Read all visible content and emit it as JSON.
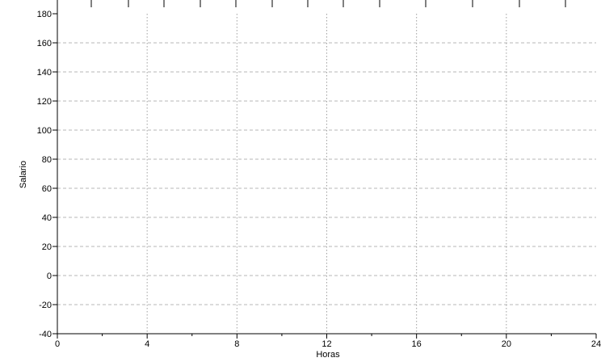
{
  "chart_data": {
    "type": "line",
    "title": "",
    "xlabel": "Horas",
    "ylabel": "Salario",
    "xlim": [
      0,
      24
    ],
    "ylim": [
      -40,
      180
    ],
    "x_major_ticks": [
      0,
      4,
      8,
      12,
      16,
      20,
      24
    ],
    "x_minor_step": 2,
    "y_major_ticks": [
      -40,
      -20,
      0,
      20,
      40,
      60,
      80,
      100,
      120,
      140,
      160,
      180
    ],
    "x_grid": true,
    "y_grid": true,
    "series": []
  },
  "colors": {
    "axis": "#000000",
    "grid": "#a0a0a0",
    "background": "#ffffff"
  }
}
